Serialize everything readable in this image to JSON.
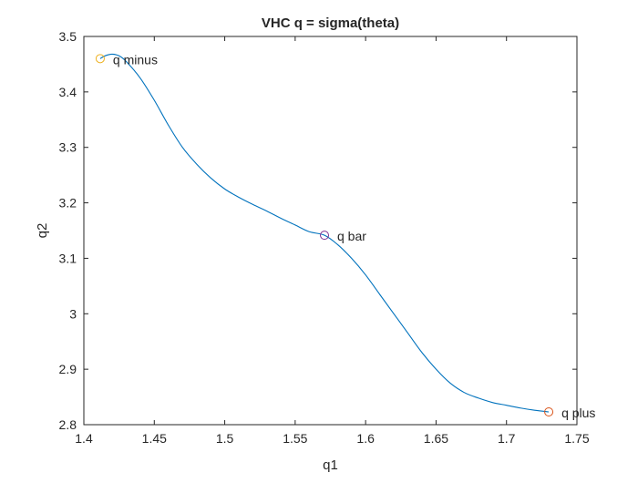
{
  "chart_data": {
    "type": "line",
    "title": "VHC q = sigma(theta)",
    "xlabel": "q1",
    "ylabel": "q2",
    "xlim": [
      1.4,
      1.75
    ],
    "ylim": [
      2.8,
      3.5
    ],
    "xticks": [
      1.4,
      1.45,
      1.5,
      1.55,
      1.6,
      1.65,
      1.7,
      1.75
    ],
    "xtick_labels": [
      "1.4",
      "1.45",
      "1.5",
      "1.55",
      "1.6",
      "1.65",
      "1.7",
      "1.75"
    ],
    "yticks": [
      2.8,
      2.9,
      3.0,
      3.1,
      3.2,
      3.3,
      3.4,
      3.5
    ],
    "ytick_labels": [
      "2.8",
      "2.9",
      "3",
      "3.1",
      "3.2",
      "3.3",
      "3.4",
      "3.5"
    ],
    "grid": false,
    "series": [
      {
        "color": "#0072BD",
        "x": [
          1.4116,
          1.415,
          1.42,
          1.425,
          1.43,
          1.44,
          1.45,
          1.46,
          1.47,
          1.48,
          1.49,
          1.5,
          1.51,
          1.52,
          1.53,
          1.54,
          1.55,
          1.56,
          1.5708,
          1.58,
          1.59,
          1.6,
          1.61,
          1.62,
          1.63,
          1.64,
          1.65,
          1.66,
          1.67,
          1.68,
          1.69,
          1.7,
          1.71,
          1.72,
          1.73
        ],
        "y": [
          3.46,
          3.465,
          3.468,
          3.465,
          3.455,
          3.425,
          3.385,
          3.34,
          3.3,
          3.27,
          3.245,
          3.225,
          3.21,
          3.197,
          3.185,
          3.172,
          3.16,
          3.148,
          3.1416,
          3.125,
          3.1,
          3.07,
          3.035,
          3.0,
          2.965,
          2.93,
          2.9,
          2.875,
          2.858,
          2.848,
          2.84,
          2.835,
          2.83,
          2.826,
          2.823
        ]
      }
    ],
    "markers": [
      {
        "label": "q minus",
        "x": 1.4116,
        "y": 3.46,
        "color": "#EDB120"
      },
      {
        "label": "q bar",
        "x": 1.5708,
        "y": 3.1416,
        "color": "#7E2F8E"
      },
      {
        "label": "q plus",
        "x": 1.73,
        "y": 2.823,
        "color": "#D95319"
      }
    ]
  }
}
